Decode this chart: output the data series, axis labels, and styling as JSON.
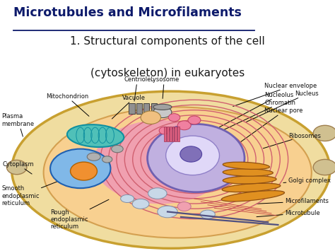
{
  "title": "Microtubules and Microfilaments",
  "subtitle_line1": "1. Structural components of the cell",
  "subtitle_line2": "(cytoskeleton) in eukaryotes",
  "bg_color": "#ffffff",
  "title_color": "#0d1a6b",
  "subtitle_color": "#1a1a1a",
  "title_fontsize": 12.5,
  "subtitle_fontsize": 11,
  "cell_bg": "#f5e6b8",
  "cell_inner": "#fce4b0",
  "nucleus_color": "#b8aad8",
  "nucleus_edge": "#6a5acd",
  "nucleolus_color": "#9080c0",
  "er_color": "#e87070",
  "mito_color": "#60c8c0",
  "vacuole_color": "#70a8e0",
  "golgi_color": "#e8a030",
  "label_fontsize": 6.0,
  "label_color": "#111111"
}
